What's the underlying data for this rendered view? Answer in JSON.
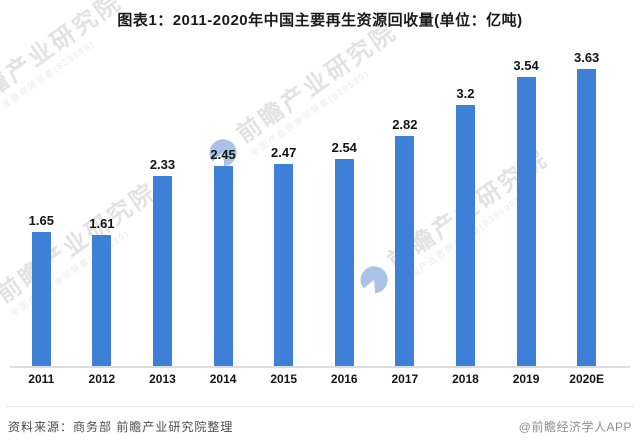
{
  "title": "图表1：2011-2020年中国主要再生资源回收量(单位：亿吨)",
  "chart_data": {
    "type": "bar",
    "title": "图表1：2011-2020年中国主要再生资源回收量(单位：亿吨)",
    "unit": "亿吨",
    "categories": [
      "2011",
      "2012",
      "2013",
      "2014",
      "2015",
      "2016",
      "2017",
      "2018",
      "2019",
      "2020E"
    ],
    "values": [
      1.65,
      1.61,
      2.33,
      2.45,
      2.47,
      2.54,
      2.82,
      3.2,
      3.54,
      3.63
    ],
    "value_labels": [
      "1.65",
      "1.61",
      "2.33",
      "2.45",
      "2.47",
      "2.54",
      "2.82",
      "3.2",
      "3.54",
      "3.63"
    ],
    "xlabel": "",
    "ylabel": "",
    "ylim": [
      0,
      4
    ],
    "y_axis_visible": false,
    "grid": false,
    "legend": false,
    "data_labels": true,
    "bar_color": "#3E7FD7"
  },
  "footer": {
    "source": "资料来源：商务部 前瞻产业研究院整理",
    "credit": "@前瞻经济学人APP"
  },
  "watermark": {
    "text": "前瞻产业研究院",
    "subtext": "中国产业咨询领导者(839599)",
    "logo": "qianzhan-circle-logo"
  },
  "colors": {
    "bar": "#3E7FD7",
    "title_text": "#1a1a1a",
    "label_text": "#141414",
    "axis_line": "#dcdcdc",
    "divider": "#e8e8e8",
    "source_text": "#4d4d4d",
    "credit_text": "#8f8f8f"
  }
}
